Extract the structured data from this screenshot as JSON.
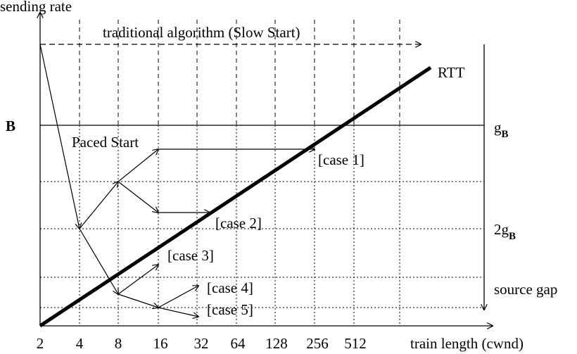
{
  "labels": {
    "y_axis": "sending rate",
    "x_axis": "train length (cwnd)",
    "traditional": "traditional algorithm (Slow Start)",
    "rtt": "RTT",
    "b": "B",
    "paced_start": "Paced Start",
    "case1": "[case 1]",
    "case2": "[case 2]",
    "case3": "[case 3]",
    "case4": "[case 4]",
    "case5": "[case 5]",
    "gb_main": "g",
    "gb_sub": "B",
    "two_gb_main": "2g",
    "two_gb_sub": "B",
    "source_gap": "source gap"
  },
  "x_ticks": [
    "2",
    "4",
    "8",
    "16",
    "32",
    "64",
    "128",
    "256",
    "512"
  ]
}
